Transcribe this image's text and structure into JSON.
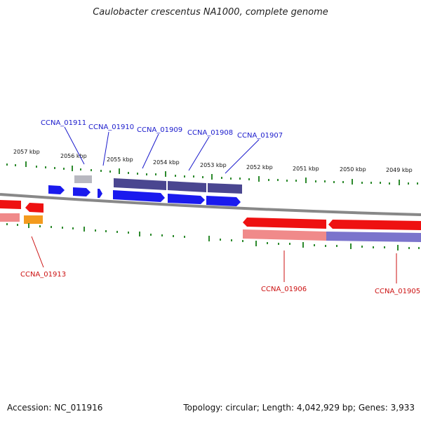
{
  "title": "Caulobacter crescentus NA1000, complete genome",
  "footer": {
    "accession": "Accession: NC_011916",
    "summary": "Topology: circular; Length: 4,042,929 bp; Genes: 3,933"
  },
  "colors": {
    "forward_cds": "#1a1aee",
    "forward_operon": "#4a4690",
    "forward_other": "#b8b8c0",
    "reverse_cds": "#ee1111",
    "reverse_operon_pink": "#f08a8a",
    "reverse_operon_purple": "#7b74cc",
    "reverse_other": "#f39a1e",
    "backbone": "#888888",
    "ticks": "#2d8a2d",
    "label_forward": "#1a1acc",
    "label_reverse": "#cc1111"
  },
  "scale_labels": [
    "2057 kbp",
    "2056 kbp",
    "2055 kbp",
    "2054 kbp",
    "2053 kbp",
    "2052 kbp",
    "2051 kbp",
    "2050 kbp",
    "2049 kbp"
  ],
  "gene_labels": {
    "forward": [
      "CCNA_01911",
      "CCNA_01910",
      "CCNA_01909",
      "CCNA_01908",
      "CCNA_01907"
    ],
    "reverse": [
      "CCNA_01913",
      "CCNA_01906",
      "CCNA_01905"
    ]
  }
}
